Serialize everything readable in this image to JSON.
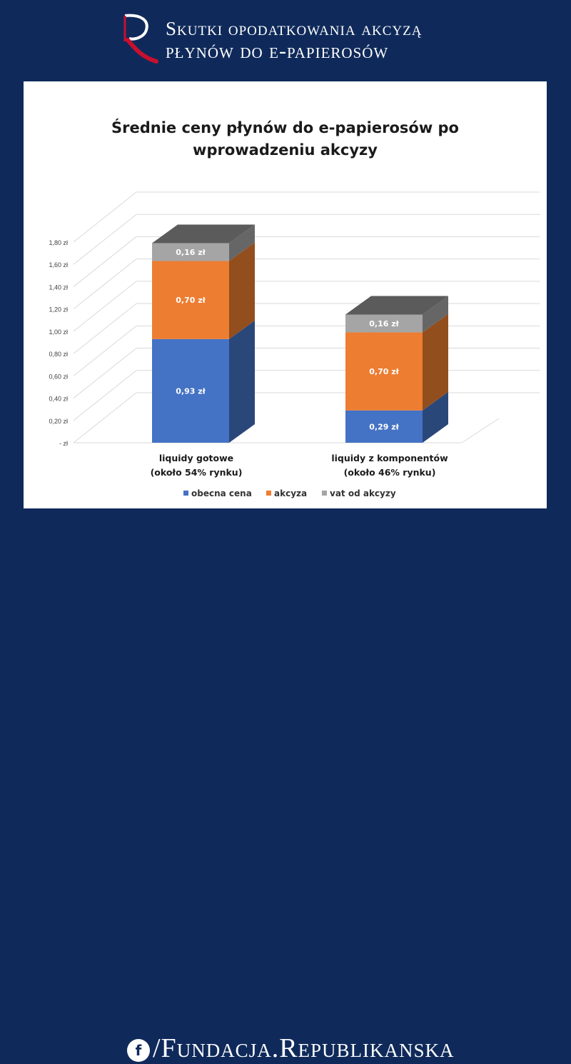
{
  "header": {
    "line1": "Skutki opodatkowania akcyzą",
    "line2": "płynów do e-papierosów"
  },
  "footer": {
    "handle": "/Fundacja.Republikanska",
    "icon": "facebook-icon"
  },
  "chart_data": {
    "type": "bar",
    "stacked": true,
    "three_d": true,
    "title": "Średnie ceny płynów do e-papierosów po wprowadzeniu akcyzy",
    "title_lines": [
      "Średnie ceny płynów do e-papierosów po",
      "wprowadzeniu akcyzy"
    ],
    "categories": [
      "liquidy gotowe",
      "liquidy z komponentów"
    ],
    "category_sublabels": [
      "(około 54% rynku)",
      "(około 46% rynku)"
    ],
    "series": [
      {
        "name": "obecna cena",
        "values": [
          0.93,
          0.29
        ],
        "labels": [
          "0,93 zł",
          "0,29 zł"
        ],
        "color": "#4472c4"
      },
      {
        "name": "akcyza",
        "values": [
          0.7,
          0.7
        ],
        "labels": [
          "0,70 zł",
          "0,70 zł"
        ],
        "color": "#ed7d31"
      },
      {
        "name": "vat od akcyzy",
        "values": [
          0.16,
          0.16
        ],
        "labels": [
          "0,16 zł",
          "0,16 zł"
        ],
        "color": "#a5a5a5"
      }
    ],
    "ylim": [
      0,
      1.8
    ],
    "ytick_values": [
      0,
      0.2,
      0.4,
      0.6,
      0.8,
      1.0,
      1.2,
      1.4,
      1.6,
      1.8
    ],
    "ytick_labels": [
      "- zł",
      "0,20 zł",
      "0,40 zł",
      "0,60 zł",
      "0,80 zł",
      "1,00 zł",
      "1,20 zł",
      "1,40 zł",
      "1,60 zł",
      "1,80 zł"
    ],
    "grid": true,
    "legend_position": "bottom"
  }
}
